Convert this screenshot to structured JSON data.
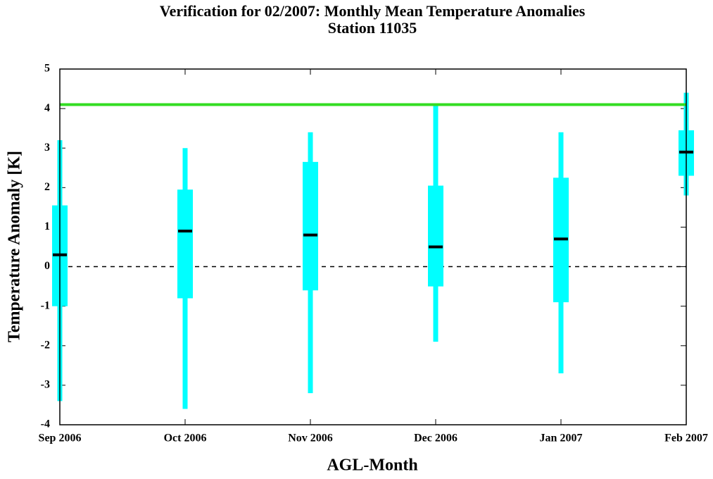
{
  "chart_data": {
    "type": "box",
    "title": "Verification for 02/2007: Monthly Mean Temperature Anomalies",
    "subtitle": "Station 11035",
    "x_label": "AGL-Month",
    "y_label": "Temperature Anomaly [K]",
    "categories": [
      "Sep 2006",
      "Oct 2006",
      "Nov 2006",
      "Dec 2006",
      "Jan 2007",
      "Feb 2007"
    ],
    "min": [
      -3.4,
      -3.6,
      -3.2,
      -1.9,
      -2.7,
      1.8
    ],
    "q1": [
      -1.0,
      -0.8,
      -0.6,
      -0.5,
      -0.9,
      2.3
    ],
    "median": [
      0.3,
      0.9,
      0.8,
      0.5,
      0.7,
      2.9
    ],
    "q3": [
      1.55,
      1.95,
      2.65,
      2.05,
      2.25,
      3.45
    ],
    "max": [
      3.2,
      3.0,
      3.4,
      4.1,
      3.4,
      4.4
    ],
    "color": "#00ffff",
    "median_color": "#000000",
    "reference_line": 4.1,
    "reference_color": "#33dd22",
    "zero_line": 0,
    "ylim": [
      -4,
      5
    ],
    "yticks": [
      -4,
      -3,
      -2,
      -1,
      0,
      1,
      2,
      3,
      4,
      5
    ]
  }
}
